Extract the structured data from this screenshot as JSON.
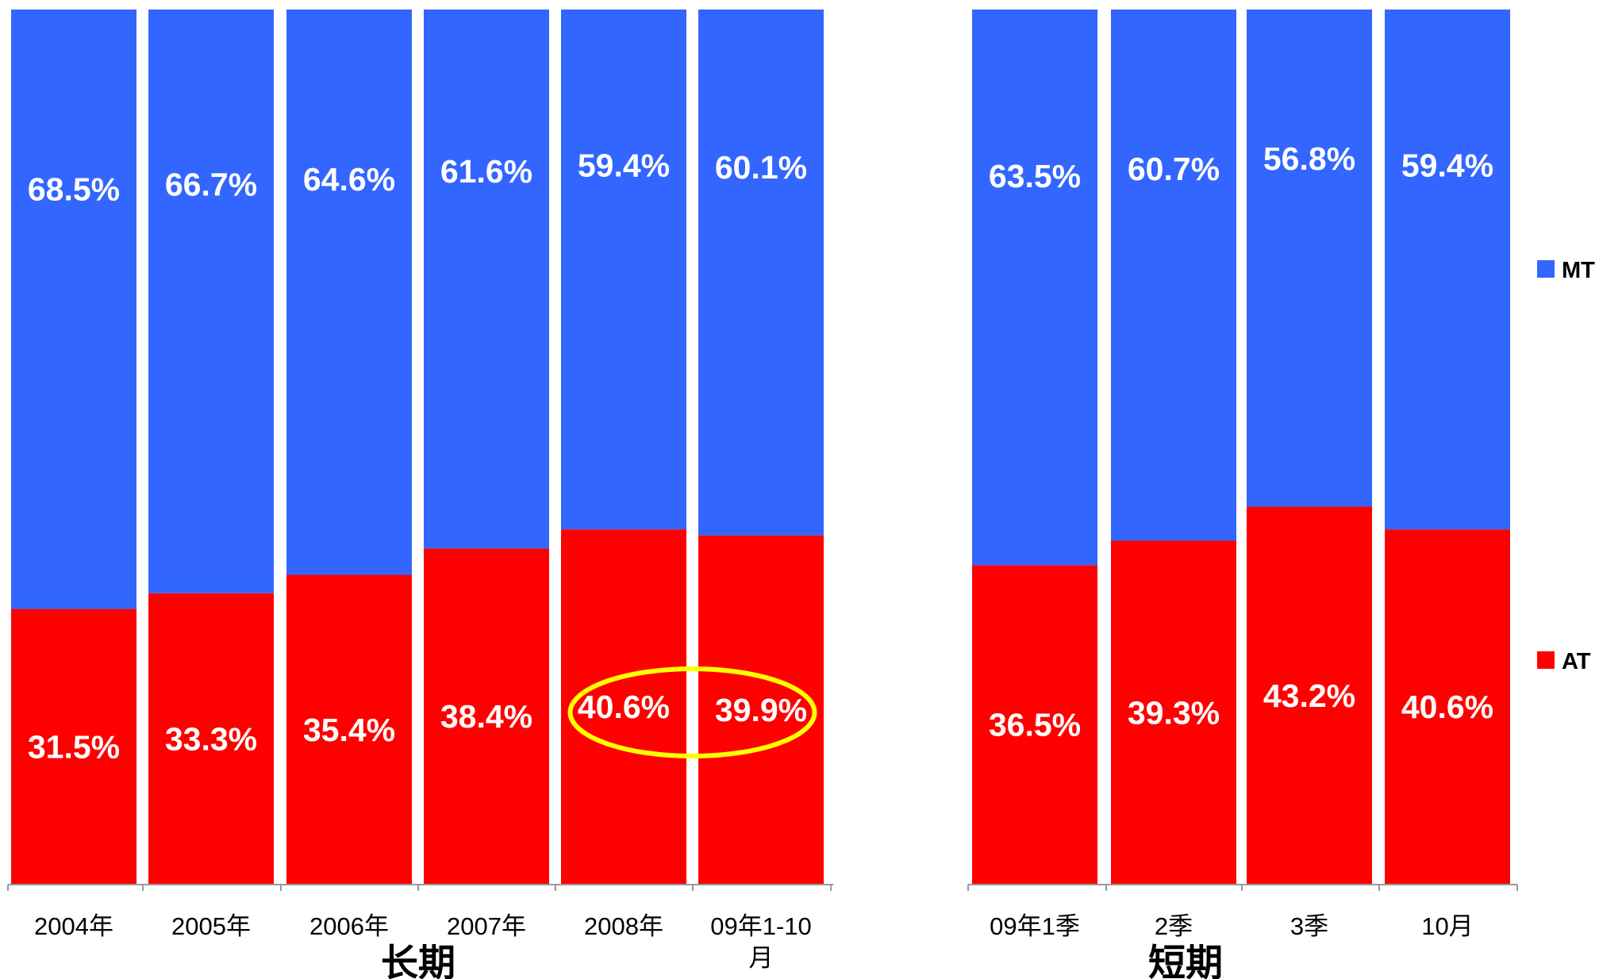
{
  "chart_data": {
    "type": "bar",
    "stacked": true,
    "percent": true,
    "categories": [
      "2004年",
      "2005年",
      "2006年",
      "2007年",
      "2008年",
      "09年1-10\n月",
      "09年1季",
      "2季",
      "3季",
      "10月"
    ],
    "series": [
      {
        "name": "AT",
        "color": "#FF0000",
        "values": [
          31.5,
          33.3,
          35.4,
          38.4,
          40.6,
          39.9,
          36.5,
          39.3,
          43.2,
          40.6
        ],
        "labels": [
          "31.5%",
          "33.3%",
          "35.4%",
          "38.4%",
          "40.6%",
          "39.9%",
          "36.5%",
          "39.3%",
          "43.2%",
          "40.6%"
        ]
      },
      {
        "name": "MT",
        "color": "#3366FF",
        "values": [
          68.5,
          66.7,
          64.6,
          61.6,
          59.4,
          60.1,
          63.5,
          60.7,
          56.8,
          59.4
        ],
        "labels": [
          "68.5%",
          "66.7%",
          "64.6%",
          "61.6%",
          "59.4%",
          "60.1%",
          "63.5%",
          "60.7%",
          "56.8%",
          "59.4%"
        ]
      }
    ],
    "groups": [
      {
        "label": "长期",
        "categories": [
          0,
          1,
          2,
          3,
          4,
          5
        ]
      },
      {
        "label": "短期",
        "categories": [
          6,
          7,
          8,
          9
        ]
      }
    ],
    "ylim": [
      0,
      100
    ],
    "legend": {
      "position": "right",
      "order": [
        "MT",
        "AT"
      ]
    },
    "highlight": {
      "categories": [
        4,
        5
      ],
      "series": "AT",
      "shape": "ellipse",
      "color": "#FFFF00"
    },
    "grid": false
  }
}
